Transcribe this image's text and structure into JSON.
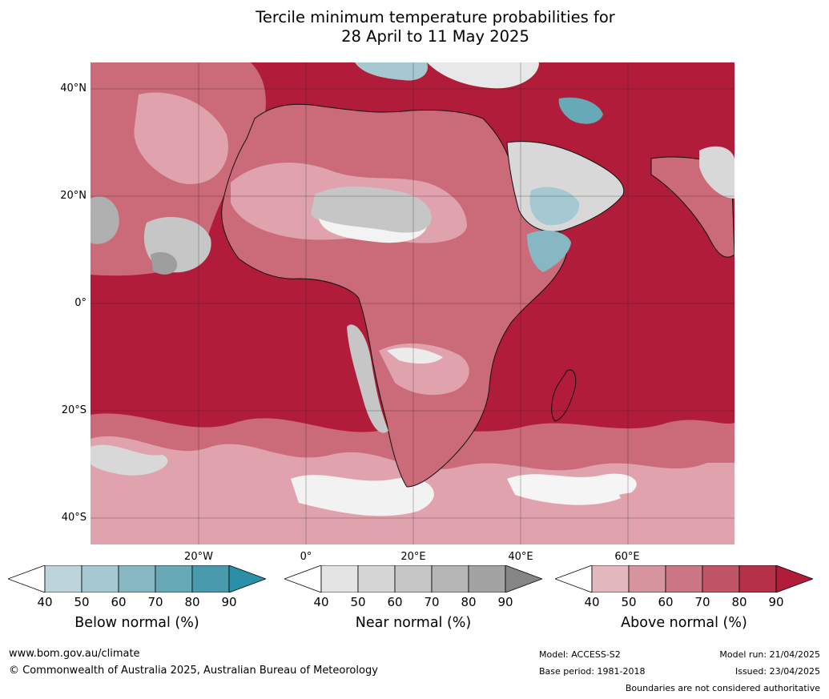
{
  "title": {
    "line1": "Tercile minimum temperature probabilities for",
    "line2": "28 April to 11 May 2025"
  },
  "axes": {
    "lat_labels": [
      "40°N",
      "20°N",
      "0°",
      "20°S",
      "40°S"
    ],
    "lon_labels": [
      "20°W",
      "0°",
      "20°E",
      "40°E",
      "60°E"
    ]
  },
  "colorbars": [
    {
      "name": "below",
      "label": "Below normal (%)",
      "ticks": [
        "40",
        "50",
        "60",
        "70",
        "80",
        "90"
      ],
      "colors": [
        "#ffffff",
        "#bdd4da",
        "#a6c8d0",
        "#86b7c3",
        "#68a9b8",
        "#4a9aae",
        "#2b8fa8"
      ]
    },
    {
      "name": "near",
      "label": "Near normal (%)",
      "ticks": [
        "40",
        "50",
        "60",
        "70",
        "80",
        "90"
      ],
      "colors": [
        "#ffffff",
        "#e4e4e4",
        "#d6d6d6",
        "#c6c6c6",
        "#b5b5b5",
        "#a3a3a3",
        "#858585"
      ]
    },
    {
      "name": "above",
      "label": "Above normal (%)",
      "ticks": [
        "40",
        "50",
        "60",
        "70",
        "80",
        "90"
      ],
      "colors": [
        "#ffffff",
        "#e2b7bd",
        "#d6959e",
        "#cb7682",
        "#bf5567",
        "#b53148",
        "#b01c3a"
      ]
    }
  ],
  "map_colors": {
    "ocean_dominant": "#b01c3a",
    "above_mid": "#cb6a78",
    "above_light": "#e0a3ad",
    "near_light": "#d8d8d8",
    "near_mid": "#b0b0b0",
    "below_light": "#a6c8d0",
    "below_dark": "#3f97ab",
    "white": "#ffffff",
    "coast": "#111111",
    "border": "#808080",
    "grid": "#222222"
  },
  "footer": {
    "website": "www.bom.gov.au/climate",
    "copyright": "© Commonwealth of Australia 2025, Australian Bureau of Meteorology",
    "model": "Model: ACCESS-S2",
    "base_period": "Base period: 1981-2018",
    "model_run": "Model run: 21/04/2025",
    "issued": "Issued: 23/04/2025",
    "disclaimer": "Boundaries are not considered authoritative"
  }
}
